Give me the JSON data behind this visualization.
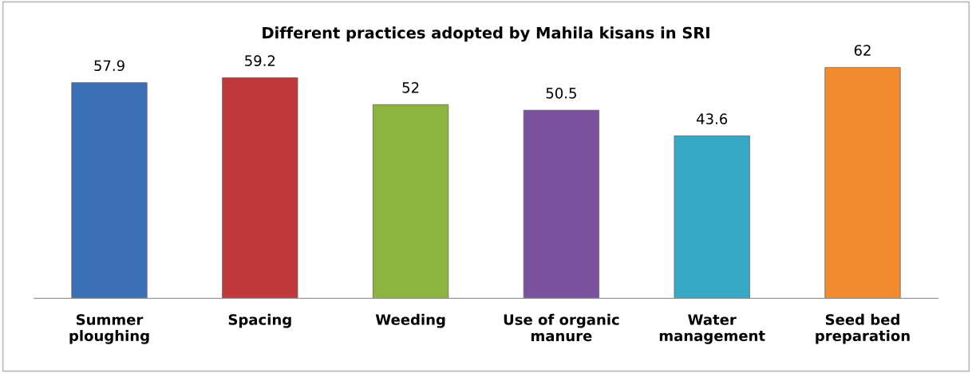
{
  "chart_data": {
    "type": "bar",
    "title": "Different practices adopted by Mahila kisans in SRI",
    "categories": [
      "Summer\nploughing",
      "Spacing",
      "Weeding",
      "Use of organic\nmanure",
      "Water\nmanagement",
      "Seed bed\npreparation"
    ],
    "values": [
      57.9,
      59.2,
      52,
      50.5,
      43.6,
      62
    ],
    "colors": [
      "#3b6fb6",
      "#c0393a",
      "#8cb53f",
      "#7a519d",
      "#36a9c6",
      "#f28b2f"
    ],
    "data_labels": true,
    "tick_labels": "x",
    "grid": false,
    "legend": false
  }
}
